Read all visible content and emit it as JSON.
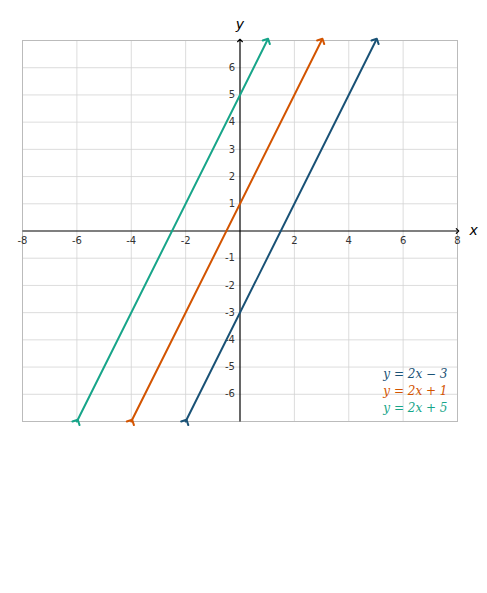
{
  "chart_data": {
    "type": "line",
    "xlabel": "x",
    "ylabel": "y",
    "xlim": [
      -8,
      8
    ],
    "ylim": [
      -7,
      7
    ],
    "xticks": [
      -8,
      -6,
      -4,
      -2,
      2,
      4,
      6,
      8
    ],
    "yticks": [
      -6,
      -5,
      -4,
      -3,
      -2,
      -1,
      1,
      2,
      3,
      4,
      5,
      6
    ],
    "grid": true,
    "legend": "lower right",
    "marker": "arrow",
    "series": [
      {
        "name": "y = 2x − 3",
        "color": "#1a5276",
        "x": [
          -2,
          5
        ],
        "values": [
          -7,
          7
        ]
      },
      {
        "name": "y = 2x + 1",
        "color": "#d35400",
        "x": [
          -4,
          3
        ],
        "values": [
          -7,
          7
        ]
      },
      {
        "name": "y = 2x + 5",
        "color": "#17a589",
        "x": [
          -6,
          1
        ],
        "values": [
          -7,
          7
        ]
      }
    ]
  }
}
